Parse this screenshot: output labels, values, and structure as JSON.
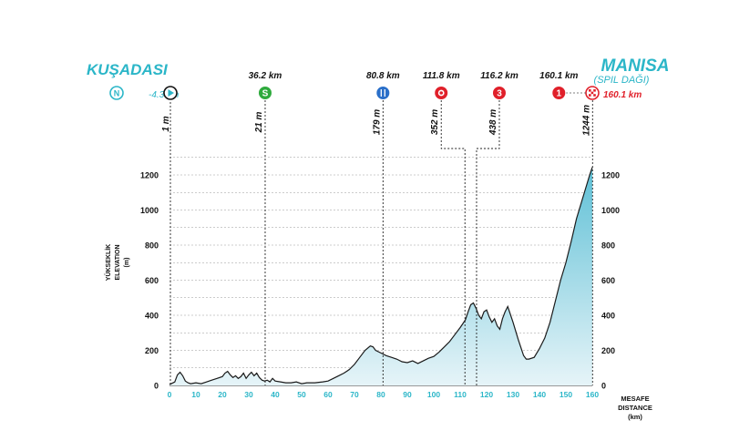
{
  "start": {
    "city": "KUŞADASI",
    "neutral_icon": "N",
    "neutral_km": "-4.3 km",
    "elevation": "1 m",
    "km_value": -4.3
  },
  "finish": {
    "city": "MANISA",
    "subtitle": "(SPIL DAĞI)",
    "km_label": "160.1 km",
    "km_red": "160.1 km",
    "elevation": "1244 m",
    "icon": "finish-flag-icon",
    "km_value": 160.1
  },
  "markers": [
    {
      "km": 36.2,
      "label": "36.2 km",
      "icon": "S",
      "kind": "sprint",
      "color": "#2eaa3c",
      "elevation": "21 m"
    },
    {
      "km": 80.8,
      "label": "80.8 km",
      "icon": "food-icon",
      "kind": "feed",
      "color": "#2a6fc9",
      "elevation": "179 m"
    },
    {
      "km": 111.8,
      "label": "111.8 km",
      "icon": "bonus-icon",
      "kind": "bonus",
      "color": "#e0202a",
      "elevation": "352 m"
    },
    {
      "km": 116.2,
      "label": "116.2 km",
      "icon": "3",
      "kind": "kom",
      "color": "#e0202a",
      "elevation": "438 m"
    },
    {
      "km": 160.1,
      "label": "160.1 km",
      "icon": "1",
      "kind": "kom",
      "color": "#e0202a",
      "elevation": "1244 m"
    }
  ],
  "axes": {
    "y_title_line1": "YÜKSEKLİK",
    "y_title_line2": "ELEVATION",
    "y_title_line3": "(m)",
    "x_title_line1": "MESAFE",
    "x_title_line2": "DISTANCE",
    "x_title_line3": "(km)"
  },
  "colors": {
    "accent": "#2bb6c8",
    "fill_top": "#5fc0d6",
    "fill_bottom": "#e6f4f8",
    "red": "#e0202a"
  },
  "chart_data": {
    "type": "area",
    "xlabel": "MESAFE DISTANCE (km)",
    "ylabel": "YÜKSEKLİK ELEVATION (m)",
    "xlim": [
      0,
      160
    ],
    "ylim": [
      0,
      1300
    ],
    "x_ticks": [
      0,
      10,
      20,
      30,
      40,
      50,
      60,
      70,
      80,
      90,
      100,
      110,
      120,
      130,
      140,
      150,
      160
    ],
    "y_ticks": [
      0,
      200,
      400,
      600,
      800,
      1000,
      1200
    ],
    "grid": "horizontal dashed",
    "series": [
      {
        "x": [
          0,
          2,
          3,
          4,
          5,
          6,
          7,
          8,
          10,
          12,
          14,
          16,
          18,
          20,
          21,
          22,
          23,
          24,
          25,
          26,
          27,
          28,
          29,
          30,
          31,
          32,
          33,
          34,
          35,
          36,
          37,
          38,
          39,
          40,
          42,
          44,
          46,
          48,
          50,
          52,
          55,
          58,
          60,
          62,
          64,
          66,
          68,
          70,
          72,
          74,
          76,
          77,
          78,
          80,
          82,
          84,
          86,
          88,
          90,
          92,
          94,
          96,
          98,
          100,
          102,
          104,
          106,
          108,
          110,
          111,
          112,
          113,
          114,
          115,
          116,
          117,
          118,
          119,
          120,
          121,
          122,
          123,
          124,
          125,
          126,
          127,
          128,
          130,
          132,
          134,
          135,
          136,
          138,
          140,
          142,
          144,
          146,
          148,
          150,
          152,
          154,
          156,
          158,
          159,
          160
        ],
        "y": [
          5,
          20,
          60,
          75,
          55,
          25,
          15,
          10,
          15,
          10,
          20,
          30,
          40,
          50,
          70,
          80,
          60,
          45,
          55,
          40,
          50,
          70,
          40,
          60,
          75,
          55,
          70,
          45,
          30,
          25,
          30,
          20,
          40,
          25,
          20,
          15,
          15,
          20,
          10,
          15,
          15,
          20,
          25,
          40,
          55,
          70,
          90,
          120,
          160,
          200,
          225,
          220,
          200,
          185,
          170,
          160,
          150,
          135,
          130,
          140,
          125,
          140,
          155,
          165,
          190,
          220,
          250,
          290,
          330,
          352,
          375,
          420,
          460,
          470,
          440,
          400,
          380,
          420,
          430,
          390,
          360,
          380,
          340,
          320,
          380,
          420,
          450,
          360,
          260,
          170,
          150,
          150,
          160,
          210,
          270,
          360,
          480,
          600,
          700,
          820,
          950,
          1050,
          1150,
          1200,
          1244
        ]
      }
    ]
  }
}
